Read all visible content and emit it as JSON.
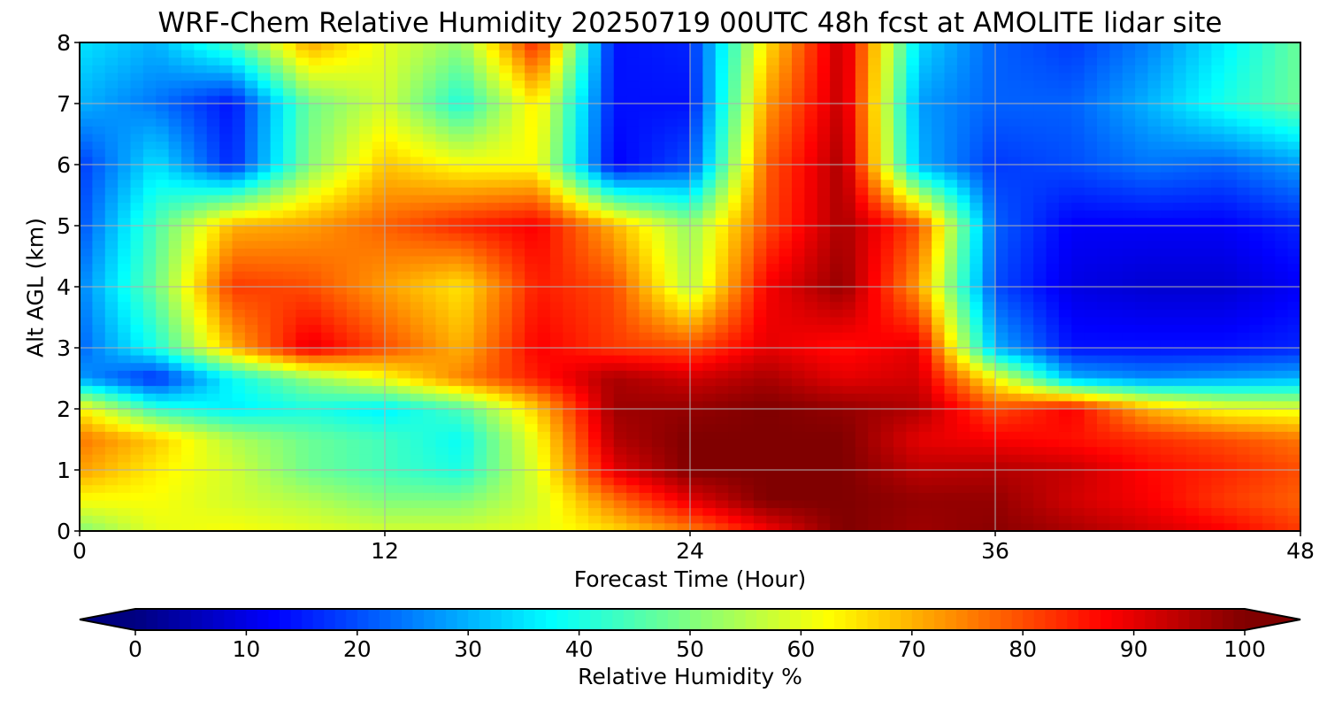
{
  "chart_data": {
    "type": "heatmap",
    "title": "WRF-Chem Relative Humidity 20250719 00UTC 48h fcst at AMOLITE lidar site",
    "xlabel": "Forecast Time (Hour)",
    "ylabel": "Alt AGL (km)",
    "xlim": [
      0,
      48
    ],
    "ylim": [
      0,
      8
    ],
    "xticks": [
      0,
      12,
      24,
      36,
      48
    ],
    "yticks": [
      0,
      1,
      2,
      3,
      4,
      5,
      6,
      7,
      8
    ],
    "grid": true,
    "colormap": "jet",
    "colorbar": {
      "label": "Relative Humidity %",
      "range": [
        0,
        100
      ],
      "ticks": [
        0,
        10,
        20,
        30,
        40,
        50,
        60,
        70,
        80,
        90,
        100
      ],
      "extend": "both",
      "orientation": "horizontal"
    },
    "x": [
      0,
      3,
      6,
      9,
      12,
      15,
      18,
      21,
      24,
      27,
      30,
      33,
      36,
      39,
      42,
      45,
      48
    ],
    "y": [
      0,
      0.5,
      1,
      1.5,
      2,
      2.5,
      3,
      4,
      5,
      6,
      7,
      8
    ],
    "z": [
      [
        50,
        60,
        62,
        60,
        58,
        58,
        60,
        66,
        75,
        88,
        100,
        97,
        99,
        96,
        92,
        88,
        82
      ],
      [
        62,
        62,
        58,
        55,
        50,
        50,
        58,
        76,
        90,
        100,
        100,
        98,
        98,
        92,
        88,
        82,
        78
      ],
      [
        72,
        64,
        58,
        48,
        44,
        40,
        60,
        90,
        100,
        100,
        100,
        94,
        95,
        93,
        87,
        84,
        80
      ],
      [
        76,
        68,
        55,
        48,
        44,
        38,
        62,
        95,
        100,
        100,
        100,
        90,
        88,
        86,
        83,
        80,
        76
      ],
      [
        64,
        42,
        36,
        40,
        36,
        45,
        68,
        97,
        98,
        100,
        98,
        95,
        80,
        88,
        70,
        62,
        60
      ],
      [
        28,
        16,
        38,
        52,
        62,
        75,
        85,
        96,
        92,
        96,
        90,
        92,
        62,
        30,
        26,
        28,
        30
      ],
      [
        22,
        40,
        70,
        90,
        80,
        70,
        88,
        82,
        80,
        90,
        86,
        90,
        30,
        14,
        14,
        14,
        16
      ],
      [
        25,
        48,
        82,
        80,
        72,
        65,
        85,
        80,
        55,
        88,
        98,
        72,
        20,
        10,
        8,
        8,
        12
      ],
      [
        20,
        45,
        70,
        72,
        78,
        84,
        88,
        70,
        52,
        80,
        96,
        80,
        22,
        12,
        12,
        12,
        16
      ],
      [
        18,
        35,
        16,
        50,
        68,
        62,
        62,
        12,
        20,
        78,
        96,
        30,
        18,
        20,
        24,
        22,
        28
      ],
      [
        30,
        24,
        14,
        48,
        58,
        40,
        65,
        14,
        14,
        72,
        94,
        28,
        22,
        22,
        30,
        40,
        48
      ],
      [
        35,
        30,
        45,
        72,
        60,
        52,
        85,
        14,
        16,
        65,
        94,
        34,
        22,
        18,
        25,
        36,
        48
      ]
    ]
  }
}
